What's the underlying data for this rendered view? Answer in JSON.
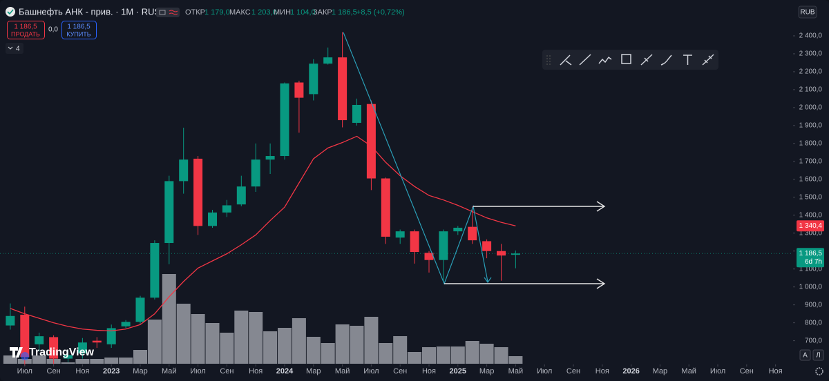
{
  "header": {
    "symbol": "Башнефть АНК - прив. · 1M · RUS",
    "ohlc": [
      {
        "label": "ОТКР",
        "value": "1 179,0"
      },
      {
        "label": "МАКС",
        "value": "1 203,0"
      },
      {
        "label": "МИН",
        "value": "1 104,0"
      },
      {
        "label": "ЗАКР",
        "value": "1 186,5"
      }
    ],
    "change": "+8,5 (+0,72%)",
    "sell_price": "1 186,5",
    "sell": "ПРОДАТЬ",
    "spread": "0,0",
    "buy_price": "1 186,5",
    "buy": "КУПИТЬ",
    "indicators": "4",
    "currency": "RUB"
  },
  "logo": "TradingView",
  "scale_buttons": [
    "A",
    "Л"
  ],
  "chart_data": {
    "type": "candlestick",
    "x": [
      "2022-06",
      "2022-07",
      "2022-08",
      "2022-09",
      "2022-10",
      "2022-11",
      "2022-12",
      "2023-01",
      "2023-02",
      "2023-03",
      "2023-04",
      "2023-05",
      "2023-06",
      "2023-07",
      "2023-08",
      "2023-09",
      "2023-10",
      "2023-11",
      "2023-12",
      "2024-01",
      "2024-02",
      "2024-03",
      "2024-04",
      "2024-05",
      "2024-06",
      "2024-07",
      "2024-08",
      "2024-09",
      "2024-10",
      "2024-11",
      "2024-12",
      "2025-01",
      "2025-02",
      "2025-03",
      "2025-04",
      "2025-05"
    ],
    "open": [
      785,
      845,
      680,
      720,
      600,
      630,
      700,
      680,
      780,
      805,
      940,
      1245,
      1590,
      1715,
      1340,
      1415,
      1460,
      1560,
      1710,
      1730,
      2140,
      2075,
      2245,
      2280,
      1915,
      2020,
      1605,
      1275,
      1310,
      1190,
      1150,
      1310,
      1335,
      1255,
      1200,
      1179
    ],
    "high": [
      908,
      890,
      745,
      730,
      650,
      715,
      720,
      790,
      815,
      950,
      1260,
      1620,
      1888,
      1730,
      1430,
      1485,
      1620,
      1800,
      1800,
      2140,
      2150,
      2270,
      2335,
      2420,
      2050,
      2040,
      1610,
      1320,
      1320,
      1200,
      1320,
      1340,
      1450,
      1265,
      1240,
      1203
    ],
    "low": [
      762,
      560,
      640,
      570,
      580,
      600,
      660,
      660,
      770,
      790,
      930,
      1127,
      1520,
      1290,
      1330,
      1390,
      1450,
      1530,
      1630,
      1710,
      1860,
      2040,
      2240,
      1890,
      1900,
      1540,
      1240,
      1240,
      1130,
      1080,
      1030,
      1290,
      1240,
      1160,
      1035,
      1104
    ],
    "close": [
      838,
      610,
      725,
      600,
      620,
      690,
      690,
      770,
      805,
      940,
      1245,
      1590,
      1710,
      1340,
      1415,
      1455,
      1560,
      1710,
      1730,
      2135,
      2055,
      2245,
      2280,
      1930,
      2015,
      1605,
      1280,
      1310,
      1195,
      1150,
      1310,
      1330,
      1260,
      1200,
      1175,
      1186.5
    ],
    "volume": [
      12,
      7,
      12,
      7,
      2,
      7,
      7,
      9,
      9,
      20,
      64,
      130,
      87,
      72,
      59,
      45,
      77,
      75,
      47,
      52,
      66,
      39,
      30,
      57,
      55,
      68,
      30,
      40,
      17,
      24,
      25,
      25,
      33,
      29,
      24,
      11
    ],
    "ma": [
      880,
      850,
      825,
      800,
      780,
      765,
      758,
      755,
      765,
      790,
      850,
      945,
      1030,
      1105,
      1145,
      1185,
      1235,
      1290,
      1370,
      1445,
      1580,
      1715,
      1775,
      1805,
      1840,
      1785,
      1695,
      1620,
      1560,
      1510,
      1485,
      1455,
      1420,
      1385,
      1360,
      1340.4
    ],
    "up_color": "#089981",
    "down_color": "#f23645",
    "volume_color": "#9a9ca4",
    "ma_color": "#f23645",
    "ma_label": {
      "value": 1340.4,
      "label": "1 340,4"
    },
    "last_price_label": {
      "value": 1186.5,
      "label": "1 186,5"
    },
    "countdown": "6d 7h",
    "xlim": [
      "2022-05",
      "2026-12"
    ],
    "xticks": [
      {
        "value": "2022-07",
        "label": "Июл"
      },
      {
        "value": "2022-09",
        "label": "Сен"
      },
      {
        "value": "2022-11",
        "label": "Ноя"
      },
      {
        "value": "2023-01",
        "label": "2023"
      },
      {
        "value": "2023-03",
        "label": "Мар"
      },
      {
        "value": "2023-05",
        "label": "Май"
      },
      {
        "value": "2023-07",
        "label": "Июл"
      },
      {
        "value": "2023-09",
        "label": "Сен"
      },
      {
        "value": "2023-11",
        "label": "Ноя"
      },
      {
        "value": "2024-01",
        "label": "2024"
      },
      {
        "value": "2024-03",
        "label": "Мар"
      },
      {
        "value": "2024-05",
        "label": "Май"
      },
      {
        "value": "2024-07",
        "label": "Июл"
      },
      {
        "value": "2024-09",
        "label": "Сен"
      },
      {
        "value": "2024-11",
        "label": "Ноя"
      },
      {
        "value": "2025-01",
        "label": "2025"
      },
      {
        "value": "2025-03",
        "label": "Мар"
      },
      {
        "value": "2025-05",
        "label": "Май"
      },
      {
        "value": "2025-07",
        "label": "Июл"
      },
      {
        "value": "2025-09",
        "label": "Сен"
      },
      {
        "value": "2025-11",
        "label": "Ноя"
      },
      {
        "value": "2026-01",
        "label": "2026"
      },
      {
        "value": "2026-03",
        "label": "Мар"
      },
      {
        "value": "2026-05",
        "label": "Май"
      },
      {
        "value": "2026-07",
        "label": "Июл"
      },
      {
        "value": "2026-09",
        "label": "Сен"
      },
      {
        "value": "2026-11",
        "label": "Ноя"
      }
    ],
    "ylim": [
      560,
      2600
    ],
    "yticks": [
      {
        "value": 700,
        "label": "700,0"
      },
      {
        "value": 800,
        "label": "800,0"
      },
      {
        "value": 900,
        "label": "900,0"
      },
      {
        "value": 1000,
        "label": "1 000,0"
      },
      {
        "value": 1100,
        "label": "1 100,0"
      },
      {
        "value": 1200,
        "label": "1 200,0"
      },
      {
        "value": 1300,
        "label": "1 300,0"
      },
      {
        "value": 1400,
        "label": "1 400,0"
      },
      {
        "value": 1500,
        "label": "1 500,0"
      },
      {
        "value": 1600,
        "label": "1 600,0"
      },
      {
        "value": 1700,
        "label": "1 700,0"
      },
      {
        "value": 1800,
        "label": "1 800,0"
      },
      {
        "value": 1900,
        "label": "1 900,0"
      },
      {
        "value": 2000,
        "label": "2 000,0"
      },
      {
        "value": 2100,
        "label": "2 100,0"
      },
      {
        "value": 2200,
        "label": "2 200,0"
      },
      {
        "value": 2300,
        "label": "2 300,0"
      },
      {
        "value": 2400,
        "label": "2 400,0"
      }
    ],
    "grid": false
  }
}
